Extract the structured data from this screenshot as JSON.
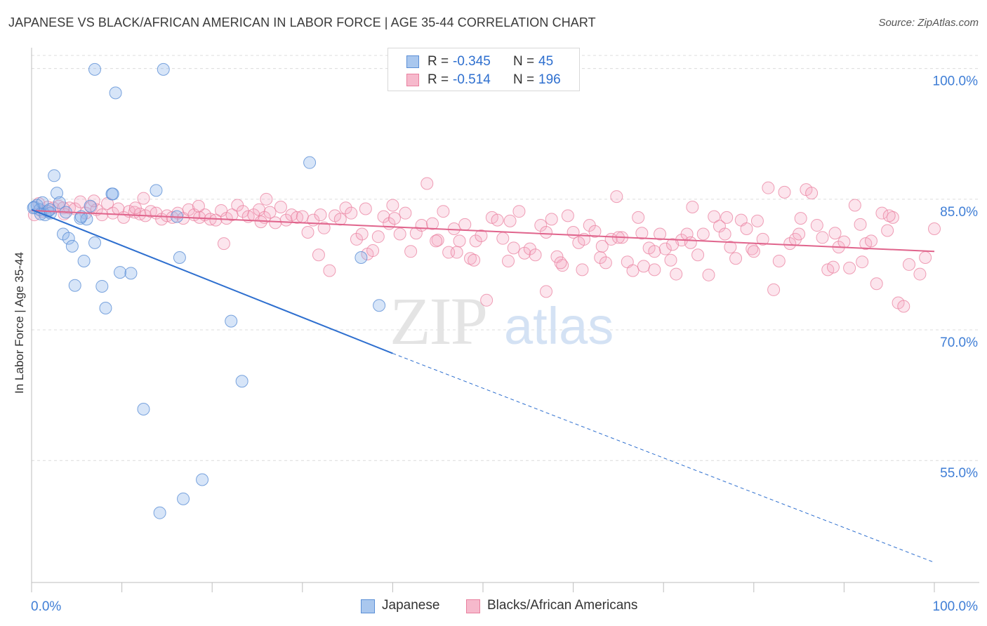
{
  "header": {
    "title": "JAPANESE VS BLACK/AFRICAN AMERICAN IN LABOR FORCE | AGE 35-44 CORRELATION CHART",
    "source": "Source: ZipAtlas.com"
  },
  "watermark": {
    "zip": "ZIP",
    "atlas": "atlas"
  },
  "legend_top": {
    "rows": [
      {
        "r_label": "R =",
        "r_value": "-0.345",
        "n_label": "N =",
        "n_value": "45",
        "color": "#a9c7ee",
        "border": "#5b8fd6"
      },
      {
        "r_label": "R =",
        "r_value": "-0.514",
        "n_label": "N =",
        "n_value": "196",
        "color": "#f6b9cc",
        "border": "#e9809f"
      }
    ]
  },
  "legend_bottom": {
    "items": [
      {
        "label": "Japanese",
        "color": "#a9c7ee",
        "border": "#5b8fd6"
      },
      {
        "label": "Blacks/African Americans",
        "color": "#f6b9cc",
        "border": "#e9809f"
      }
    ]
  },
  "colors": {
    "japanese_fill": "rgba(140,180,235,0.35)",
    "japanese_stroke": "#5b8fd6",
    "japanese_line": "#2e6fcf",
    "black_fill": "rgba(245,170,195,0.30)",
    "black_stroke": "#e9809f",
    "black_line": "#e0648c",
    "tick_label": "#3f7ed6",
    "grid": "#dcdcdc"
  },
  "chart_data": {
    "type": "scatter",
    "title": "JAPANESE VS BLACK/AFRICAN AMERICAN IN LABOR FORCE | AGE 35-44 CORRELATION CHART",
    "xlabel": "",
    "ylabel": "In Labor Force | Age 35-44",
    "xlim": [
      0,
      100
    ],
    "ylim": [
      41,
      101.5
    ],
    "x_tick_labels": [
      "0.0%",
      "100.0%"
    ],
    "y_ticks": [
      55,
      70,
      85,
      100
    ],
    "y_tick_labels": [
      "55.0%",
      "70.0%",
      "85.0%",
      "100.0%"
    ],
    "grid": true,
    "legend_position": "bottom",
    "series": [
      {
        "name": "Japanese",
        "points": [
          [
            0.3,
            84.1
          ],
          [
            0.6,
            84.3
          ],
          [
            0.9,
            83.8
          ],
          [
            1.2,
            84.6
          ],
          [
            1.5,
            83.2
          ],
          [
            1.8,
            83.6
          ],
          [
            2.1,
            83.4
          ],
          [
            2.5,
            87.7
          ],
          [
            2.8,
            85.7
          ],
          [
            3.1,
            84.6
          ],
          [
            3.5,
            81.0
          ],
          [
            3.8,
            83.5
          ],
          [
            4.1,
            80.5
          ],
          [
            4.5,
            79.6
          ],
          [
            4.8,
            75.1
          ],
          [
            5.4,
            82.8
          ],
          [
            5.8,
            77.9
          ],
          [
            6.1,
            82.7
          ],
          [
            6.5,
            84.2
          ],
          [
            7.0,
            80.0
          ],
          [
            7.0,
            99.9
          ],
          [
            7.8,
            75.0
          ],
          [
            8.2,
            72.5
          ],
          [
            8.9,
            85.6
          ],
          [
            9.3,
            97.2
          ],
          [
            9.8,
            76.6
          ],
          [
            11.0,
            76.5
          ],
          [
            12.4,
            60.9
          ],
          [
            13.8,
            86.0
          ],
          [
            14.2,
            49.0
          ],
          [
            14.6,
            99.9
          ],
          [
            16.4,
            78.3
          ],
          [
            16.8,
            50.6
          ],
          [
            18.9,
            52.8
          ],
          [
            22.1,
            71.0
          ],
          [
            23.3,
            64.1
          ],
          [
            30.8,
            89.2
          ],
          [
            36.5,
            78.3
          ],
          [
            38.5,
            72.8
          ],
          [
            5.5,
            83.0
          ],
          [
            9.0,
            85.6
          ],
          [
            1.0,
            83.3
          ],
          [
            2.0,
            83.8
          ],
          [
            16.1,
            83.0
          ],
          [
            0.2,
            84.0
          ]
        ]
      },
      {
        "name": "Blacks/African Americans",
        "points": [
          [
            0.3,
            83.2
          ],
          [
            0.8,
            84.5
          ],
          [
            1.2,
            83.6
          ],
          [
            1.8,
            84.1
          ],
          [
            2.4,
            84.0
          ],
          [
            3.0,
            84.2
          ],
          [
            3.6,
            83.3
          ],
          [
            4.2,
            84.0
          ],
          [
            4.8,
            83.9
          ],
          [
            5.4,
            84.7
          ],
          [
            6.0,
            83.4
          ],
          [
            6.6,
            84.1
          ],
          [
            7.2,
            83.8
          ],
          [
            7.8,
            83.2
          ],
          [
            8.4,
            84.5
          ],
          [
            9.0,
            83.4
          ],
          [
            9.6,
            83.9
          ],
          [
            10.2,
            82.9
          ],
          [
            10.8,
            83.6
          ],
          [
            11.4,
            83.5
          ],
          [
            12.0,
            83.3
          ],
          [
            12.6,
            83.1
          ],
          [
            13.2,
            83.6
          ],
          [
            13.8,
            83.4
          ],
          [
            14.4,
            82.7
          ],
          [
            15.0,
            83.1
          ],
          [
            15.6,
            82.9
          ],
          [
            16.2,
            83.4
          ],
          [
            16.8,
            82.8
          ],
          [
            17.4,
            83.8
          ],
          [
            18.0,
            83.2
          ],
          [
            18.6,
            82.9
          ],
          [
            19.2,
            83.2
          ],
          [
            19.8,
            82.7
          ],
          [
            20.4,
            82.6
          ],
          [
            21.0,
            83.7
          ],
          [
            21.6,
            82.8
          ],
          [
            22.2,
            83.2
          ],
          [
            22.8,
            84.3
          ],
          [
            23.4,
            83.6
          ],
          [
            24.0,
            83.0
          ],
          [
            24.6,
            83.2
          ],
          [
            25.2,
            83.8
          ],
          [
            25.8,
            82.9
          ],
          [
            26.4,
            83.5
          ],
          [
            27.0,
            82.3
          ],
          [
            27.6,
            84.1
          ],
          [
            28.2,
            82.6
          ],
          [
            28.8,
            83.2
          ],
          [
            29.4,
            82.9
          ],
          [
            30.0,
            83.0
          ],
          [
            30.6,
            81.2
          ],
          [
            31.2,
            82.6
          ],
          [
            31.8,
            78.6
          ],
          [
            32.4,
            81.7
          ],
          [
            33.0,
            76.8
          ],
          [
            33.6,
            83.1
          ],
          [
            34.2,
            82.7
          ],
          [
            34.8,
            84.0
          ],
          [
            35.4,
            83.4
          ],
          [
            36.0,
            80.4
          ],
          [
            36.6,
            81.0
          ],
          [
            37.2,
            78.7
          ],
          [
            37.8,
            79.1
          ],
          [
            38.4,
            80.7
          ],
          [
            39.0,
            83.0
          ],
          [
            39.6,
            82.2
          ],
          [
            40.2,
            82.8
          ],
          [
            40.8,
            81.0
          ],
          [
            41.4,
            83.4
          ],
          [
            42.0,
            79.0
          ],
          [
            42.6,
            81.1
          ],
          [
            43.2,
            82.0
          ],
          [
            43.8,
            86.8
          ],
          [
            44.4,
            82.2
          ],
          [
            45.0,
            80.3
          ],
          [
            45.6,
            83.6
          ],
          [
            46.2,
            78.9
          ],
          [
            46.8,
            81.6
          ],
          [
            47.4,
            80.2
          ],
          [
            48.0,
            82.1
          ],
          [
            48.6,
            78.2
          ],
          [
            49.2,
            80.2
          ],
          [
            49.8,
            80.8
          ],
          [
            50.4,
            73.4
          ],
          [
            51.0,
            82.9
          ],
          [
            51.6,
            82.6
          ],
          [
            52.2,
            80.5
          ],
          [
            52.8,
            77.9
          ],
          [
            53.4,
            79.4
          ],
          [
            54.0,
            83.6
          ],
          [
            54.6,
            78.8
          ],
          [
            55.2,
            79.3
          ],
          [
            55.8,
            78.6
          ],
          [
            56.4,
            82.0
          ],
          [
            57.0,
            81.2
          ],
          [
            57.6,
            82.7
          ],
          [
            58.2,
            78.4
          ],
          [
            58.8,
            77.4
          ],
          [
            59.4,
            83.1
          ],
          [
            60.0,
            81.2
          ],
          [
            60.6,
            80.0
          ],
          [
            61.2,
            80.4
          ],
          [
            61.8,
            82.0
          ],
          [
            62.4,
            81.3
          ],
          [
            63.0,
            78.3
          ],
          [
            63.6,
            77.7
          ],
          [
            64.2,
            80.4
          ],
          [
            64.8,
            85.3
          ],
          [
            65.4,
            80.6
          ],
          [
            66.0,
            77.8
          ],
          [
            66.6,
            76.8
          ],
          [
            67.2,
            82.9
          ],
          [
            67.8,
            77.3
          ],
          [
            68.4,
            79.4
          ],
          [
            69.0,
            76.9
          ],
          [
            69.6,
            81.0
          ],
          [
            70.2,
            79.3
          ],
          [
            70.8,
            78.0
          ],
          [
            71.4,
            76.4
          ],
          [
            72.0,
            80.3
          ],
          [
            72.6,
            81.0
          ],
          [
            73.2,
            84.1
          ],
          [
            73.8,
            78.6
          ],
          [
            74.4,
            81.0
          ],
          [
            75.0,
            76.3
          ],
          [
            75.6,
            83.0
          ],
          [
            76.2,
            81.9
          ],
          [
            76.8,
            81.0
          ],
          [
            77.4,
            79.5
          ],
          [
            78.0,
            78.2
          ],
          [
            78.6,
            82.6
          ],
          [
            79.2,
            81.6
          ],
          [
            79.8,
            79.3
          ],
          [
            80.4,
            82.5
          ],
          [
            81.0,
            80.4
          ],
          [
            81.6,
            86.3
          ],
          [
            82.2,
            74.6
          ],
          [
            82.8,
            77.9
          ],
          [
            83.4,
            85.8
          ],
          [
            84.0,
            79.9
          ],
          [
            84.6,
            80.4
          ],
          [
            85.2,
            82.8
          ],
          [
            85.8,
            86.1
          ],
          [
            86.4,
            85.7
          ],
          [
            87.0,
            82.0
          ],
          [
            87.6,
            80.6
          ],
          [
            88.2,
            76.9
          ],
          [
            88.8,
            77.2
          ],
          [
            89.4,
            79.5
          ],
          [
            90.0,
            80.1
          ],
          [
            90.6,
            77.1
          ],
          [
            91.2,
            84.3
          ],
          [
            91.8,
            82.1
          ],
          [
            92.4,
            79.9
          ],
          [
            93.0,
            80.2
          ],
          [
            93.6,
            75.3
          ],
          [
            94.2,
            83.4
          ],
          [
            94.8,
            81.4
          ],
          [
            95.4,
            82.9
          ],
          [
            96.0,
            73.1
          ],
          [
            96.6,
            72.7
          ],
          [
            97.2,
            77.5
          ],
          [
            98.4,
            76.4
          ],
          [
            99.0,
            78.3
          ],
          [
            100.0,
            81.6
          ],
          [
            12.4,
            85.1
          ],
          [
            6.9,
            84.8
          ],
          [
            3.5,
            84.0
          ],
          [
            26.0,
            85.0
          ],
          [
            37.0,
            83.9
          ],
          [
            21.3,
            79.9
          ],
          [
            40.0,
            84.3
          ],
          [
            49.0,
            78.0
          ],
          [
            53.0,
            82.5
          ],
          [
            57.0,
            74.4
          ],
          [
            61.0,
            76.9
          ],
          [
            65.0,
            80.6
          ],
          [
            69.0,
            79.0
          ],
          [
            73.0,
            80.0
          ],
          [
            85.0,
            81.0
          ],
          [
            89.0,
            81.1
          ],
          [
            92.0,
            77.8
          ],
          [
            95.0,
            83.1
          ],
          [
            11.5,
            84.0
          ],
          [
            18.5,
            84.2
          ],
          [
            25.4,
            82.4
          ],
          [
            32.0,
            83.2
          ],
          [
            44.8,
            80.2
          ],
          [
            47.1,
            78.9
          ],
          [
            58.6,
            77.7
          ],
          [
            63.2,
            79.6
          ],
          [
            67.6,
            81.1
          ],
          [
            71.0,
            79.8
          ],
          [
            77.0,
            82.9
          ],
          [
            80.0,
            79.0
          ]
        ]
      }
    ],
    "trend_lines": [
      {
        "series": "Japanese",
        "solid_from": [
          0,
          83.8
        ],
        "solid_to": [
          40,
          67.3
        ],
        "dashed_to": [
          100,
          43.3
        ]
      },
      {
        "series": "Blacks/African Americans",
        "from": [
          0,
          83.7
        ],
        "to": [
          100,
          79.0
        ]
      }
    ]
  }
}
